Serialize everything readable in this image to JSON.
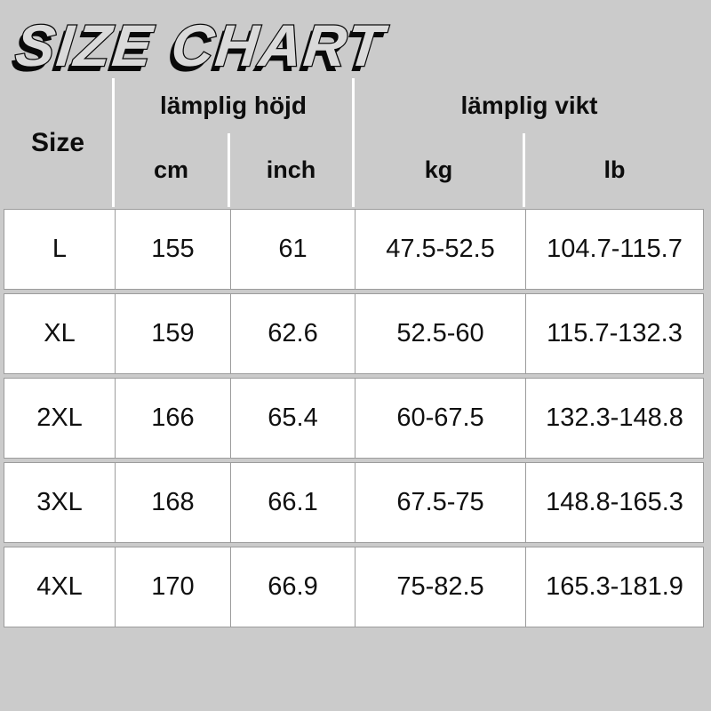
{
  "title": "SIZE CHART",
  "chart_data": {
    "type": "table",
    "title": "SIZE CHART",
    "column_groups": [
      {
        "label": "Size",
        "span": 1
      },
      {
        "label": "lämplig höjd",
        "span": 2
      },
      {
        "label": "lämplig vikt",
        "span": 2
      }
    ],
    "columns": [
      "Size",
      "cm",
      "inch",
      "kg",
      "lb"
    ],
    "rows": [
      [
        "L",
        "155",
        "61",
        "47.5-52.5",
        "104.7-115.7"
      ],
      [
        "XL",
        "159",
        "62.6",
        "52.5-60",
        "115.7-132.3"
      ],
      [
        "2XL",
        "166",
        "65.4",
        "60-67.5",
        "132.3-148.8"
      ],
      [
        "3XL",
        "168",
        "66.1",
        "67.5-75",
        "148.8-165.3"
      ],
      [
        "4XL",
        "170",
        "66.9",
        "75-82.5",
        "165.3-181.9"
      ]
    ]
  },
  "colors": {
    "background": "#cbcbcb",
    "row_background": "#ffffff",
    "cell_border": "#9c9c9c",
    "header_divider": "#ffffff",
    "text": "#0d0d0d",
    "title_fill": "#dadada",
    "title_outline": "#0a0a0a"
  }
}
